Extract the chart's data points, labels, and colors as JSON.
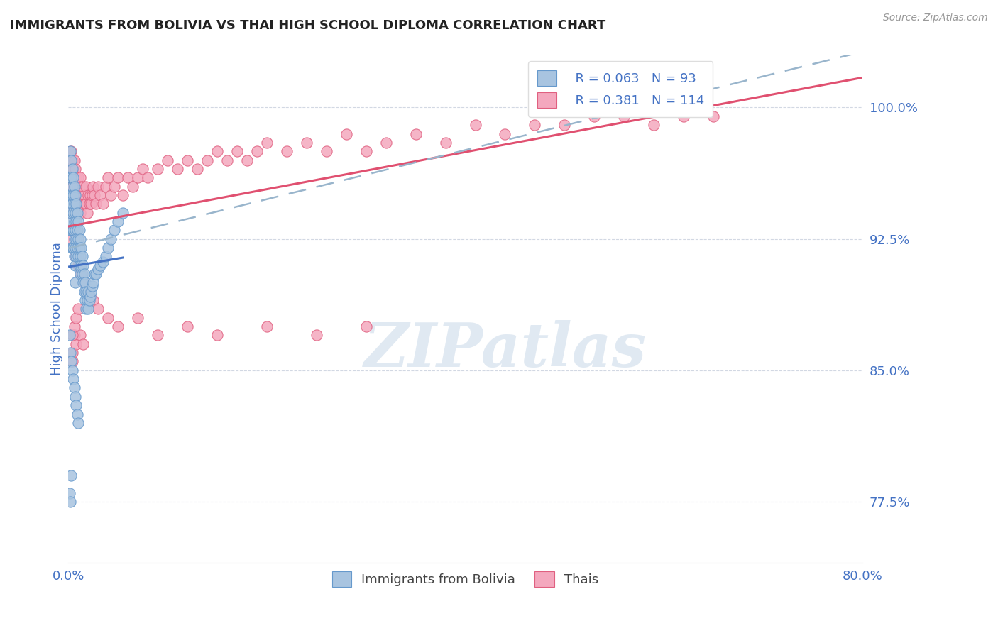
{
  "title": "IMMIGRANTS FROM BOLIVIA VS THAI HIGH SCHOOL DIPLOMA CORRELATION CHART",
  "source": "Source: ZipAtlas.com",
  "ylabel": "High School Diploma",
  "xlim": [
    0.0,
    0.8
  ],
  "ylim": [
    0.74,
    1.03
  ],
  "xticks": [
    0.0,
    0.2,
    0.4,
    0.6,
    0.8
  ],
  "xticklabels": [
    "0.0%",
    "",
    "",
    "",
    "80.0%"
  ],
  "yticks": [
    0.775,
    0.85,
    0.925,
    1.0
  ],
  "yticklabels": [
    "77.5%",
    "85.0%",
    "92.5%",
    "100.0%"
  ],
  "bolivia_color": "#a8c4e0",
  "thai_color": "#f4a8be",
  "bolivia_edge": "#6699cc",
  "thai_edge": "#e06080",
  "trend_bolivia_color": "#4472c4",
  "trend_thai_color": "#e05070",
  "trend_dashed_color": "#99b5cc",
  "legend_R_bolivia": "R = 0.063",
  "legend_N_bolivia": "N = 93",
  "legend_R_thai": "R = 0.381",
  "legend_N_thai": "N = 114",
  "legend_label_bolivia": "Immigrants from Bolivia",
  "legend_label_thai": "Thais",
  "watermark": "ZIPatlas",
  "watermark_color": "#c8d8e8",
  "title_color": "#222222",
  "tick_label_color": "#4472c4",
  "bolivia_scatter": {
    "x": [
      0.001,
      0.001,
      0.002,
      0.002,
      0.002,
      0.002,
      0.003,
      0.003,
      0.003,
      0.003,
      0.003,
      0.003,
      0.004,
      0.004,
      0.004,
      0.004,
      0.004,
      0.005,
      0.005,
      0.005,
      0.005,
      0.005,
      0.006,
      0.006,
      0.006,
      0.006,
      0.006,
      0.007,
      0.007,
      0.007,
      0.007,
      0.007,
      0.007,
      0.008,
      0.008,
      0.008,
      0.008,
      0.009,
      0.009,
      0.009,
      0.01,
      0.01,
      0.01,
      0.011,
      0.011,
      0.011,
      0.012,
      0.012,
      0.012,
      0.013,
      0.013,
      0.014,
      0.014,
      0.015,
      0.015,
      0.016,
      0.016,
      0.017,
      0.017,
      0.018,
      0.018,
      0.019,
      0.02,
      0.02,
      0.021,
      0.022,
      0.023,
      0.024,
      0.025,
      0.026,
      0.028,
      0.03,
      0.032,
      0.035,
      0.038,
      0.04,
      0.043,
      0.046,
      0.05,
      0.055,
      0.001,
      0.002,
      0.003,
      0.004,
      0.005,
      0.006,
      0.007,
      0.008,
      0.009,
      0.01,
      0.001,
      0.002,
      0.003
    ],
    "y": [
      0.945,
      0.93,
      0.975,
      0.96,
      0.95,
      0.935,
      0.97,
      0.96,
      0.95,
      0.94,
      0.93,
      0.92,
      0.965,
      0.955,
      0.945,
      0.93,
      0.92,
      0.96,
      0.95,
      0.94,
      0.93,
      0.92,
      0.955,
      0.945,
      0.935,
      0.925,
      0.915,
      0.95,
      0.94,
      0.93,
      0.92,
      0.91,
      0.9,
      0.945,
      0.935,
      0.925,
      0.915,
      0.94,
      0.93,
      0.92,
      0.935,
      0.925,
      0.915,
      0.93,
      0.92,
      0.91,
      0.925,
      0.915,
      0.905,
      0.92,
      0.91,
      0.915,
      0.905,
      0.91,
      0.9,
      0.905,
      0.895,
      0.9,
      0.89,
      0.895,
      0.885,
      0.89,
      0.895,
      0.885,
      0.89,
      0.892,
      0.895,
      0.898,
      0.9,
      0.905,
      0.905,
      0.908,
      0.91,
      0.912,
      0.915,
      0.92,
      0.925,
      0.93,
      0.935,
      0.94,
      0.87,
      0.86,
      0.855,
      0.85,
      0.845,
      0.84,
      0.835,
      0.83,
      0.825,
      0.82,
      0.78,
      0.775,
      0.79
    ]
  },
  "thai_scatter": {
    "x": [
      0.001,
      0.002,
      0.002,
      0.003,
      0.003,
      0.003,
      0.004,
      0.004,
      0.005,
      0.005,
      0.006,
      0.006,
      0.006,
      0.007,
      0.007,
      0.008,
      0.008,
      0.009,
      0.009,
      0.01,
      0.01,
      0.011,
      0.011,
      0.012,
      0.012,
      0.013,
      0.013,
      0.014,
      0.015,
      0.015,
      0.016,
      0.017,
      0.018,
      0.018,
      0.019,
      0.02,
      0.021,
      0.022,
      0.023,
      0.024,
      0.025,
      0.026,
      0.028,
      0.03,
      0.032,
      0.035,
      0.038,
      0.04,
      0.043,
      0.046,
      0.05,
      0.055,
      0.06,
      0.065,
      0.07,
      0.075,
      0.08,
      0.09,
      0.1,
      0.11,
      0.12,
      0.13,
      0.14,
      0.15,
      0.16,
      0.17,
      0.18,
      0.19,
      0.2,
      0.22,
      0.24,
      0.26,
      0.28,
      0.3,
      0.32,
      0.35,
      0.38,
      0.41,
      0.44,
      0.47,
      0.5,
      0.53,
      0.56,
      0.59,
      0.62,
      0.65,
      0.003,
      0.005,
      0.007,
      0.01,
      0.013,
      0.016,
      0.02,
      0.025,
      0.03,
      0.04,
      0.05,
      0.07,
      0.09,
      0.12,
      0.15,
      0.2,
      0.25,
      0.3,
      0.004,
      0.004,
      0.006,
      0.008,
      0.012,
      0.015,
      0.004,
      0.006,
      0.008,
      0.01
    ],
    "y": [
      0.95,
      0.96,
      0.94,
      0.975,
      0.965,
      0.955,
      0.97,
      0.96,
      0.965,
      0.955,
      0.97,
      0.96,
      0.95,
      0.965,
      0.955,
      0.96,
      0.95,
      0.955,
      0.945,
      0.96,
      0.95,
      0.955,
      0.945,
      0.96,
      0.94,
      0.955,
      0.945,
      0.95,
      0.955,
      0.945,
      0.95,
      0.945,
      0.955,
      0.945,
      0.94,
      0.95,
      0.945,
      0.95,
      0.945,
      0.95,
      0.955,
      0.95,
      0.945,
      0.955,
      0.95,
      0.945,
      0.955,
      0.96,
      0.95,
      0.955,
      0.96,
      0.95,
      0.96,
      0.955,
      0.96,
      0.965,
      0.96,
      0.965,
      0.97,
      0.965,
      0.97,
      0.965,
      0.97,
      0.975,
      0.97,
      0.975,
      0.97,
      0.975,
      0.98,
      0.975,
      0.98,
      0.975,
      0.985,
      0.975,
      0.98,
      0.985,
      0.98,
      0.99,
      0.985,
      0.99,
      0.99,
      0.995,
      0.995,
      0.99,
      0.995,
      0.995,
      0.925,
      0.92,
      0.915,
      0.91,
      0.905,
      0.9,
      0.895,
      0.89,
      0.885,
      0.88,
      0.875,
      0.88,
      0.87,
      0.875,
      0.87,
      0.875,
      0.87,
      0.875,
      0.86,
      0.855,
      0.87,
      0.865,
      0.87,
      0.865,
      0.87,
      0.875,
      0.88,
      0.885
    ]
  }
}
